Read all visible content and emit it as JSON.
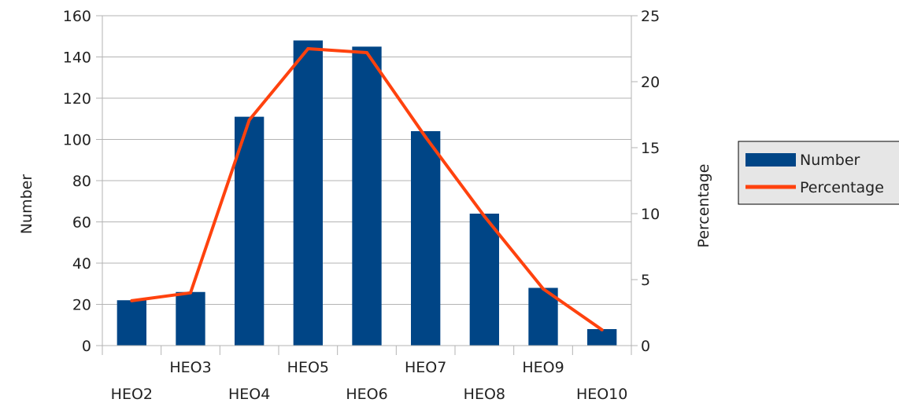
{
  "chart_data": {
    "type": "bar",
    "categories": [
      "HEO2",
      "HEO3",
      "HEO4",
      "HEO5",
      "HEO6",
      "HEO7",
      "HEO8",
      "HEO9",
      "HEO10"
    ],
    "series": [
      {
        "name": "Number",
        "type": "bar",
        "axis": "left",
        "color": "#004586",
        "values": [
          22,
          26,
          111,
          148,
          145,
          104,
          64,
          28,
          8
        ]
      },
      {
        "name": "Percentage",
        "type": "line",
        "axis": "right",
        "color": "#ff420e",
        "values": [
          3.4,
          4.0,
          17.1,
          22.5,
          22.2,
          15.8,
          9.8,
          4.3,
          1.2
        ]
      }
    ],
    "xlabel": "",
    "ylabel": "Number",
    "ylabel_right": "Percentage",
    "ylim": [
      0,
      160
    ],
    "ylim_right": [
      0,
      25
    ],
    "yticks": [
      "0",
      "20",
      "40",
      "60",
      "80",
      "100",
      "120",
      "140",
      "160"
    ],
    "yticks_right": [
      "0",
      "5",
      "10",
      "15",
      "20",
      "25"
    ],
    "grid": true,
    "legend": {
      "position": "right",
      "entries": [
        "Number",
        "Percentage"
      ]
    }
  }
}
